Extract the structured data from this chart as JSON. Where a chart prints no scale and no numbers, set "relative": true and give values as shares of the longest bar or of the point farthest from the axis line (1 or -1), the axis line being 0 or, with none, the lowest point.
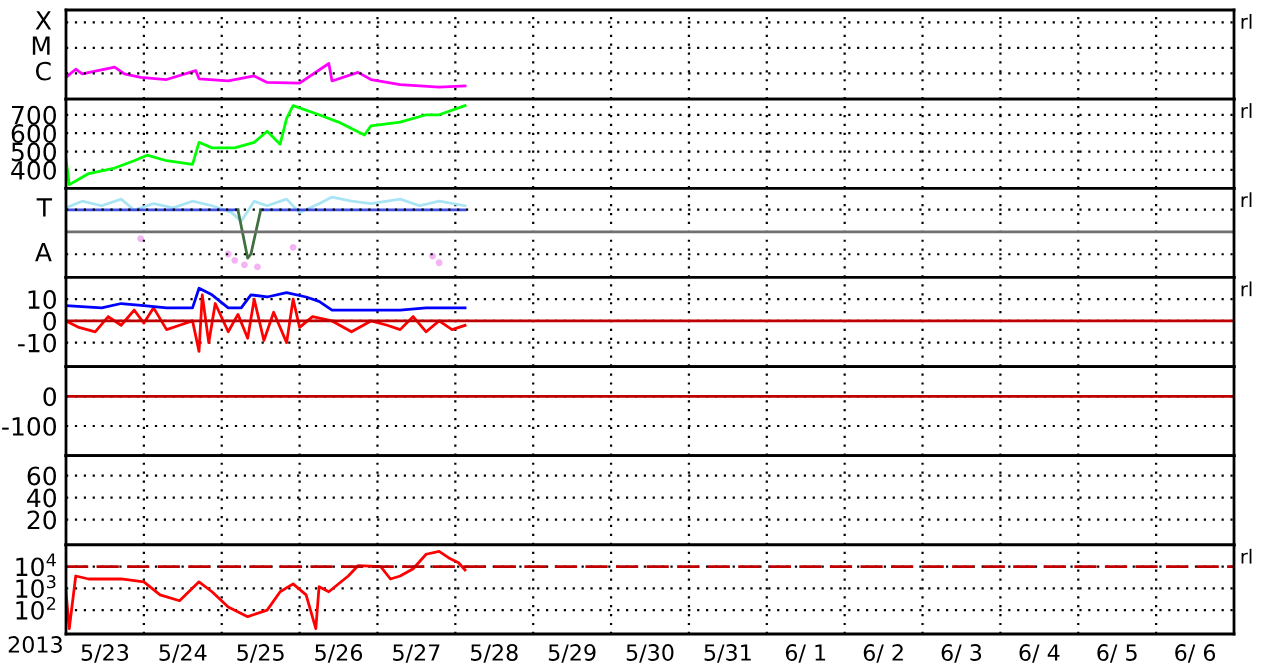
{
  "chart_data": [
    {
      "type": "line",
      "relative": true,
      "xlim": [
        "2013-05-23",
        "2013-06-07"
      ],
      "tick_labels": "y",
      "grid": true,
      "annotations": [
        "rl",
        "X",
        "M",
        "C"
      ],
      "xticks": [
        {
          "value": "2013-05-24",
          "label": null
        },
        {
          "value": "2013-05-25",
          "label": null
        },
        {
          "value": "2013-05-26",
          "label": null
        },
        {
          "value": "2013-05-27",
          "label": null
        },
        {
          "value": "2013-05-28",
          "label": null
        },
        {
          "value": "2013-05-29",
          "label": null
        },
        {
          "value": "2013-05-30",
          "label": null
        },
        {
          "value": "2013-05-31",
          "label": null
        },
        {
          "value": "2013-06-01",
          "label": null
        },
        {
          "value": "2013-06-02",
          "label": null
        },
        {
          "value": "2013-06-03",
          "label": null
        },
        {
          "value": "2013-06-04",
          "label": null
        },
        {
          "value": "2013-06-05",
          "label": null
        },
        {
          "value": "2013-06-06",
          "label": null
        }
      ],
      "series": [
        {
          "color": "#ff00ff",
          "x": [
            "2013-05-23T00:00",
            "2013-05-23T03:00",
            "2013-05-23T05:00",
            "2013-05-23T15:00",
            "2013-05-23T18:00",
            "2013-05-23T23:00",
            "2013-05-24T07:00",
            "2013-05-24T16:00",
            "2013-05-24T17:00",
            "2013-05-25T02:00",
            "2013-05-25T10:00",
            "2013-05-25T14:00",
            "2013-05-26T00:00",
            "2013-05-26T09:00",
            "2013-05-26T10:00",
            "2013-05-26T18:00",
            "2013-05-26T22:00",
            "2013-05-27T07:00",
            "2013-05-27T13:00",
            "2013-05-27T19:00",
            "2013-05-28T03:00"
          ],
          "values": [
            0.61,
            0.84,
            0.71,
            0.9,
            0.71,
            0.61,
            0.55,
            0.8,
            0.57,
            0.51,
            0.65,
            0.47,
            0.45,
            1,
            0.51,
            0.75,
            0.55,
            0.41,
            0.37,
            0.34,
            0.37
          ]
        }
      ]
    },
    {
      "type": "line",
      "xlim": [
        "2013-05-23",
        "2013-06-07"
      ],
      "ylim": [
        300,
        785
      ],
      "yticks": [
        700,
        600,
        500,
        400
      ],
      "tick_labels": "y",
      "grid": true,
      "annotations": [
        "rl"
      ],
      "xticks": [
        {
          "value": "2013-05-24",
          "label": null
        },
        {
          "value": "2013-05-25",
          "label": null
        },
        {
          "value": "2013-05-26",
          "label": null
        },
        {
          "value": "2013-05-27",
          "label": null
        },
        {
          "value": "2013-05-28",
          "label": null
        },
        {
          "value": "2013-05-29",
          "label": null
        },
        {
          "value": "2013-05-30",
          "label": null
        },
        {
          "value": "2013-05-31",
          "label": null
        },
        {
          "value": "2013-06-01",
          "label": null
        },
        {
          "value": "2013-06-02",
          "label": null
        },
        {
          "value": "2013-06-03",
          "label": null
        },
        {
          "value": "2013-06-04",
          "label": null
        },
        {
          "value": "2013-06-05",
          "label": null
        },
        {
          "value": "2013-06-06",
          "label": null
        }
      ],
      "series": [
        {
          "color": "#00ff00",
          "x": [
            "2013-05-23T00:00",
            "2013-05-23T01:00",
            "2013-05-23T03:00",
            "2013-05-23T07:00",
            "2013-05-23T15:00",
            "2013-05-23T21:00",
            "2013-05-24T01:00",
            "2013-05-24T07:00",
            "2013-05-24T15:00",
            "2013-05-24T17:00",
            "2013-05-24T21:00",
            "2013-05-25T04:00",
            "2013-05-25T10:00",
            "2013-05-25T14:00",
            "2013-05-25T18:00",
            "2013-05-25T20:00",
            "2013-05-25T22:00",
            "2013-05-26T06:00",
            "2013-05-26T12:00",
            "2013-05-26T20:00",
            "2013-05-26T22:00",
            "2013-05-27T07:00",
            "2013-05-27T15:00",
            "2013-05-27T19:00",
            "2013-05-28T03:00"
          ],
          "values": [
            460,
            320,
            340,
            380,
            410,
            450,
            480,
            450,
            430,
            550,
            520,
            520,
            550,
            610,
            540,
            680,
            750,
            700,
            660,
            590,
            640,
            660,
            700,
            700,
            750
          ]
        }
      ]
    },
    {
      "type": "line",
      "relative": true,
      "xlim": [
        "2013-05-23",
        "2013-06-07"
      ],
      "tick_labels": "y",
      "grid": true,
      "annotations": [
        "rl",
        "T",
        "A"
      ],
      "ref_lines": [
        {
          "axis": "y",
          "value": 0,
          "color": "#707070"
        }
      ],
      "xticks": [
        {
          "value": "2013-05-24",
          "label": null
        },
        {
          "value": "2013-05-25",
          "label": null
        },
        {
          "value": "2013-05-26",
          "label": null
        },
        {
          "value": "2013-05-27",
          "label": null
        },
        {
          "value": "2013-05-28",
          "label": null
        },
        {
          "value": "2013-05-29",
          "label": null
        },
        {
          "value": "2013-05-30",
          "label": null
        },
        {
          "value": "2013-05-31",
          "label": null
        },
        {
          "value": "2013-06-01",
          "label": null
        },
        {
          "value": "2013-06-02",
          "label": null
        },
        {
          "value": "2013-06-03",
          "label": null
        },
        {
          "value": "2013-06-04",
          "label": null
        },
        {
          "value": "2013-06-05",
          "label": null
        },
        {
          "value": "2013-06-06",
          "label": null
        }
      ],
      "series": [
        {
          "color": "#a8e4f4",
          "x": [
            "2013-05-23T00:00",
            "2013-05-23T05:00",
            "2013-05-23T11:00",
            "2013-05-23T17:00",
            "2013-05-23T21:00",
            "2013-05-24T03:00",
            "2013-05-24T09:00",
            "2013-05-24T15:00",
            "2013-05-24T21:00",
            "2013-05-25T03:00",
            "2013-05-25T06:00",
            "2013-05-25T10:00",
            "2013-05-25T14:00",
            "2013-05-25T20:00",
            "2013-05-26T00:00",
            "2013-05-26T06:00",
            "2013-05-26T10:00",
            "2013-05-26T16:00",
            "2013-05-26T22:00",
            "2013-05-27T07:00",
            "2013-05-27T13:00",
            "2013-05-27T19:00",
            "2013-05-28T03:00"
          ],
          "values": [
            0.69,
            0.88,
            0.75,
            0.94,
            0.63,
            0.81,
            0.69,
            0.88,
            0.75,
            0.56,
            0.31,
            0.88,
            0.75,
            0.94,
            0.56,
            0.81,
            1,
            0.88,
            0.81,
            0.94,
            0.75,
            0.88,
            0.75
          ]
        },
        {
          "color": "#4050e0",
          "x": [
            "2013-05-23T00:00",
            "2013-05-25T05:00",
            "2013-05-25T08:00",
            "2013-05-25T12:00",
            "2013-05-28T03:00"
          ],
          "values": [
            0.63,
            0.63,
            null,
            0.63,
            0.63
          ]
        },
        {
          "color": "#407040",
          "x": [
            "2013-05-25T05:00",
            "2013-05-25T08:00",
            "2013-05-25T09:00",
            "2013-05-25T12:00"
          ],
          "values": [
            0.63,
            -0.75,
            -0.63,
            0.63
          ]
        },
        {
          "type": "scatter",
          "marker": "circle",
          "color": "#f4b4f4",
          "x": [
            "2013-05-23T23:00",
            "2013-05-25T02:00",
            "2013-05-25T04:00",
            "2013-05-25T07:00",
            "2013-05-25T11:00",
            "2013-05-25T22:00",
            "2013-05-27T17:00",
            "2013-05-27T19:00"
          ],
          "values": [
            -0.19,
            -0.63,
            -0.81,
            -0.94,
            -1,
            -0.44,
            -0.69,
            -0.88
          ]
        }
      ]
    },
    {
      "type": "line",
      "xlim": [
        "2013-05-23",
        "2013-06-07"
      ],
      "ylim": [
        -21,
        20
      ],
      "yticks": [
        10,
        0,
        -10
      ],
      "tick_labels": "y",
      "grid": true,
      "annotations": [
        "rl"
      ],
      "ref_lines": [
        {
          "axis": "y",
          "value": 0,
          "color": "#c00000"
        }
      ],
      "xticks": [
        {
          "value": "2013-05-24",
          "label": null
        },
        {
          "value": "2013-05-25",
          "label": null
        },
        {
          "value": "2013-05-26",
          "label": null
        },
        {
          "value": "2013-05-27",
          "label": null
        },
        {
          "value": "2013-05-28",
          "label": null
        },
        {
          "value": "2013-05-29",
          "label": null
        },
        {
          "value": "2013-05-30",
          "label": null
        },
        {
          "value": "2013-05-31",
          "label": null
        },
        {
          "value": "2013-06-01",
          "label": null
        },
        {
          "value": "2013-06-02",
          "label": null
        },
        {
          "value": "2013-06-03",
          "label": null
        },
        {
          "value": "2013-06-04",
          "label": null
        },
        {
          "value": "2013-06-05",
          "label": null
        },
        {
          "value": "2013-06-06",
          "label": null
        }
      ],
      "series": [
        {
          "color": "#ff0000",
          "x": [
            "2013-05-23T00:00",
            "2013-05-23T04:00",
            "2013-05-23T09:00",
            "2013-05-23T13:00",
            "2013-05-23T17:00",
            "2013-05-23T21:00",
            "2013-05-24T00:00",
            "2013-05-24T03:00",
            "2013-05-24T07:00",
            "2013-05-24T11:00",
            "2013-05-24T15:00",
            "2013-05-24T17:00",
            "2013-05-24T18:00",
            "2013-05-24T20:00",
            "2013-05-24T22:00",
            "2013-05-25T02:00",
            "2013-05-25T05:00",
            "2013-05-25T08:00",
            "2013-05-25T10:00",
            "2013-05-25T13:00",
            "2013-05-25T16:00",
            "2013-05-25T20:00",
            "2013-05-25T22:00",
            "2013-05-26T00:00",
            "2013-05-26T04:00",
            "2013-05-26T10:00",
            "2013-05-26T16:00",
            "2013-05-26T22:00",
            "2013-05-27T03:00",
            "2013-05-27T07:00",
            "2013-05-27T11:00",
            "2013-05-27T15:00",
            "2013-05-27T19:00",
            "2013-05-27T23:00",
            "2013-05-28T03:00"
          ],
          "values": [
            0,
            -3,
            -5,
            2,
            -2,
            5,
            -1,
            6,
            -4,
            -2,
            0,
            -14,
            12,
            -10,
            8,
            -5,
            3,
            -8,
            10,
            -9,
            4,
            -10,
            10,
            -3,
            2,
            0,
            -5,
            0,
            -2,
            -4,
            2,
            -5,
            0,
            -4,
            -2
          ]
        },
        {
          "color": "#0000ff",
          "x": [
            "2013-05-23T00:00",
            "2013-05-23T11:00",
            "2013-05-23T17:00",
            "2013-05-24T00:00",
            "2013-05-24T07:00",
            "2013-05-24T15:00",
            "2013-05-24T17:00",
            "2013-05-24T21:00",
            "2013-05-25T02:00",
            "2013-05-25T06:00",
            "2013-05-25T09:00",
            "2013-05-25T14:00",
            "2013-05-25T20:00",
            "2013-05-26T02:00",
            "2013-05-26T06:00",
            "2013-05-26T10:00",
            "2013-05-26T22:00",
            "2013-05-27T07:00",
            "2013-05-27T15:00",
            "2013-05-28T03:00"
          ],
          "values": [
            7,
            6,
            8,
            7,
            6,
            6,
            15,
            12,
            6,
            6,
            12,
            11,
            13,
            11,
            9,
            5,
            5,
            5,
            6,
            6
          ]
        }
      ]
    },
    {
      "type": "line",
      "xlim": [
        "2013-05-23",
        "2013-06-07"
      ],
      "ylim": [
        -200,
        100
      ],
      "yticks": [
        0,
        -100
      ],
      "tick_labels": "y",
      "grid": true,
      "ref_lines": [
        {
          "axis": "y",
          "value": 0,
          "color": "#c00000"
        }
      ],
      "xticks": [
        {
          "value": "2013-05-24",
          "label": null
        },
        {
          "value": "2013-05-25",
          "label": null
        },
        {
          "value": "2013-05-26",
          "label": null
        },
        {
          "value": "2013-05-27",
          "label": null
        },
        {
          "value": "2013-05-28",
          "label": null
        },
        {
          "value": "2013-05-29",
          "label": null
        },
        {
          "value": "2013-05-30",
          "label": null
        },
        {
          "value": "2013-05-31",
          "label": null
        },
        {
          "value": "2013-06-01",
          "label": null
        },
        {
          "value": "2013-06-02",
          "label": null
        },
        {
          "value": "2013-06-03",
          "label": null
        },
        {
          "value": "2013-06-04",
          "label": null
        },
        {
          "value": "2013-06-05",
          "label": null
        },
        {
          "value": "2013-06-06",
          "label": null
        }
      ]
    },
    {
      "type": "line",
      "xlim": [
        "2013-05-23",
        "2013-06-07"
      ],
      "ylim": [
        -3,
        78
      ],
      "yticks": [
        60,
        40,
        20
      ],
      "tick_labels": "y",
      "grid": true,
      "xticks": [
        {
          "value": "2013-05-24",
          "label": null
        },
        {
          "value": "2013-05-25",
          "label": null
        },
        {
          "value": "2013-05-26",
          "label": null
        },
        {
          "value": "2013-05-27",
          "label": null
        },
        {
          "value": "2013-05-28",
          "label": null
        },
        {
          "value": "2013-05-29",
          "label": null
        },
        {
          "value": "2013-05-30",
          "label": null
        },
        {
          "value": "2013-05-31",
          "label": null
        },
        {
          "value": "2013-06-01",
          "label": null
        },
        {
          "value": "2013-06-02",
          "label": null
        },
        {
          "value": "2013-06-03",
          "label": null
        },
        {
          "value": "2013-06-04",
          "label": null
        },
        {
          "value": "2013-06-05",
          "label": null
        },
        {
          "value": "2013-06-06",
          "label": null
        }
      ]
    },
    {
      "type": "line",
      "log": "y",
      "xlim": [
        "2013-05-23",
        "2013-06-07"
      ],
      "ylim": [
        8,
        100000
      ],
      "yticks": [
        {
          "value": 10000,
          "label": "10$^{4}$"
        },
        {
          "value": 1000,
          "label": "10$^{3}$"
        },
        {
          "value": 100,
          "label": "10$^{2}$"
        }
      ],
      "grid": true,
      "annotations": [
        "rl",
        "2013"
      ],
      "ref_lines": [
        {
          "axis": "y",
          "value": 10000,
          "color": "#c00000",
          "line_style": "dashed"
        }
      ],
      "xticks": [
        {
          "value": "2013-05-23T12:00",
          "label": "5/23"
        },
        {
          "value": "2013-05-24",
          "label": null
        },
        {
          "value": "2013-05-24T12:00",
          "label": "5/24"
        },
        {
          "value": "2013-05-25",
          "label": null
        },
        {
          "value": "2013-05-25T12:00",
          "label": "5/25"
        },
        {
          "value": "2013-05-26",
          "label": null
        },
        {
          "value": "2013-05-26T12:00",
          "label": "5/26"
        },
        {
          "value": "2013-05-27",
          "label": null
        },
        {
          "value": "2013-05-27T12:00",
          "label": "5/27"
        },
        {
          "value": "2013-05-28",
          "label": null
        },
        {
          "value": "2013-05-28T12:00",
          "label": "5/28"
        },
        {
          "value": "2013-05-29",
          "label": null
        },
        {
          "value": "2013-05-29T12:00",
          "label": "5/29"
        },
        {
          "value": "2013-05-30",
          "label": null
        },
        {
          "value": "2013-05-30T12:00",
          "label": "5/30"
        },
        {
          "value": "2013-05-31",
          "label": null
        },
        {
          "value": "2013-05-31T12:00",
          "label": "5/31"
        },
        {
          "value": "2013-06-01",
          "label": null
        },
        {
          "value": "2013-06-01T12:00",
          "label": "6/ 1"
        },
        {
          "value": "2013-06-02",
          "label": null
        },
        {
          "value": "2013-06-02T12:00",
          "label": "6/ 2"
        },
        {
          "value": "2013-06-03",
          "label": null
        },
        {
          "value": "2013-06-03T12:00",
          "label": "6/ 3"
        },
        {
          "value": "2013-06-04",
          "label": null
        },
        {
          "value": "2013-06-04T12:00",
          "label": "6/ 4"
        },
        {
          "value": "2013-06-05",
          "label": null
        },
        {
          "value": "2013-06-05T12:00",
          "label": "6/ 5"
        },
        {
          "value": "2013-06-06",
          "label": null
        },
        {
          "value": "2013-06-06T12:00",
          "label": "6/ 6"
        }
      ],
      "series": [
        {
          "color": "#ff0000",
          "x": [
            "2013-05-23T00:00",
            "2013-05-23T01:00",
            "2013-05-23T03:00",
            "2013-05-23T07:00",
            "2013-05-23T17:00",
            "2013-05-24T00:00",
            "2013-05-24T05:00",
            "2013-05-24T11:00",
            "2013-05-24T17:00",
            "2013-05-24T21:00",
            "2013-05-25T02:00",
            "2013-05-25T08:00",
            "2013-05-25T14:00",
            "2013-05-25T18:00",
            "2013-05-25T22:00",
            "2013-05-26T02:00",
            "2013-05-26T05:00",
            "2013-05-26T06:00",
            "2013-05-26T09:00",
            "2013-05-26T15:00",
            "2013-05-26T18:00",
            "2013-05-27T01:00",
            "2013-05-27T04:00",
            "2013-05-27T07:00",
            "2013-05-27T11:00",
            "2013-05-27T15:00",
            "2013-05-27T19:00",
            "2013-05-27T22:00",
            "2013-05-28T01:00",
            "2013-05-28T03:00"
          ],
          "values": [
            700,
            14,
            3700,
            2700,
            2700,
            2000,
            500,
            270,
            2000,
            700,
            140,
            50,
            100,
            700,
            1600,
            500,
            14,
            1200,
            700,
            3700,
            11000,
            10000,
            2700,
            3700,
            8000,
            37000,
            50000,
            25000,
            15000,
            7000
          ]
        }
      ]
    }
  ]
}
